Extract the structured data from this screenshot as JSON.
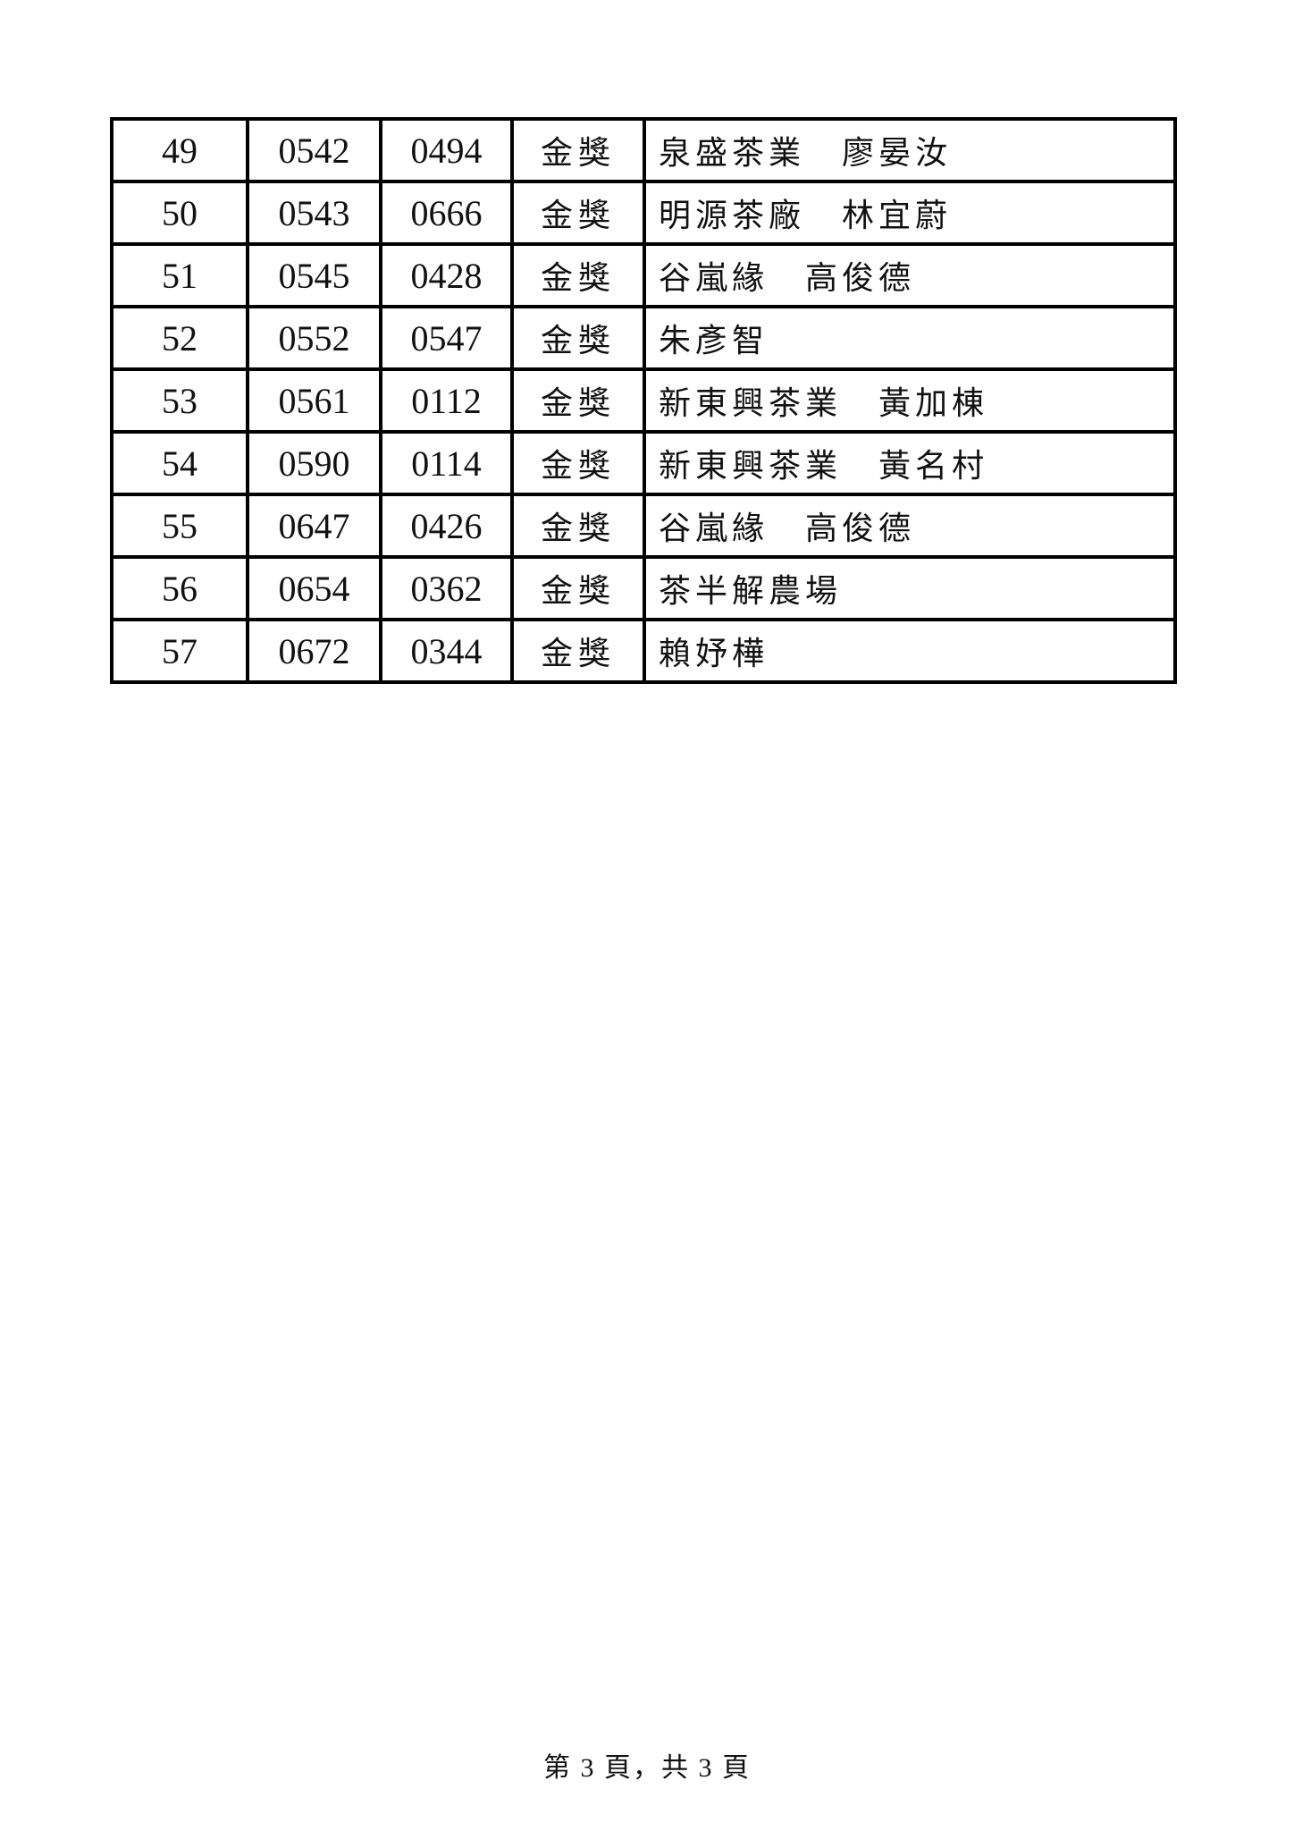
{
  "table": {
    "rows": [
      {
        "rank": "49",
        "entry_no": "0542",
        "code": "0494",
        "award": "金獎",
        "name": "泉盛茶業　廖晏汝"
      },
      {
        "rank": "50",
        "entry_no": "0543",
        "code": "0666",
        "award": "金獎",
        "name": "明源茶廠　林宜蔚"
      },
      {
        "rank": "51",
        "entry_no": "0545",
        "code": "0428",
        "award": "金獎",
        "name": "谷嵐緣　高俊德"
      },
      {
        "rank": "52",
        "entry_no": "0552",
        "code": "0547",
        "award": "金獎",
        "name": "朱彥智"
      },
      {
        "rank": "53",
        "entry_no": "0561",
        "code": "0112",
        "award": "金獎",
        "name": "新東興茶業　黃加棟"
      },
      {
        "rank": "54",
        "entry_no": "0590",
        "code": "0114",
        "award": "金獎",
        "name": "新東興茶業　黃名村"
      },
      {
        "rank": "55",
        "entry_no": "0647",
        "code": "0426",
        "award": "金獎",
        "name": "谷嵐緣　高俊德"
      },
      {
        "rank": "56",
        "entry_no": "0654",
        "code": "0362",
        "award": "金獎",
        "name": "茶半解農場"
      },
      {
        "rank": "57",
        "entry_no": "0672",
        "code": "0344",
        "award": "金獎",
        "name": "賴妤樺"
      }
    ]
  },
  "footer": {
    "page_indicator": "第 3 頁，共 3 頁"
  },
  "colors": {
    "entry_no_red": "#e02016",
    "text": "#111111",
    "border": "#000000",
    "page_bg": "#ffffff"
  }
}
